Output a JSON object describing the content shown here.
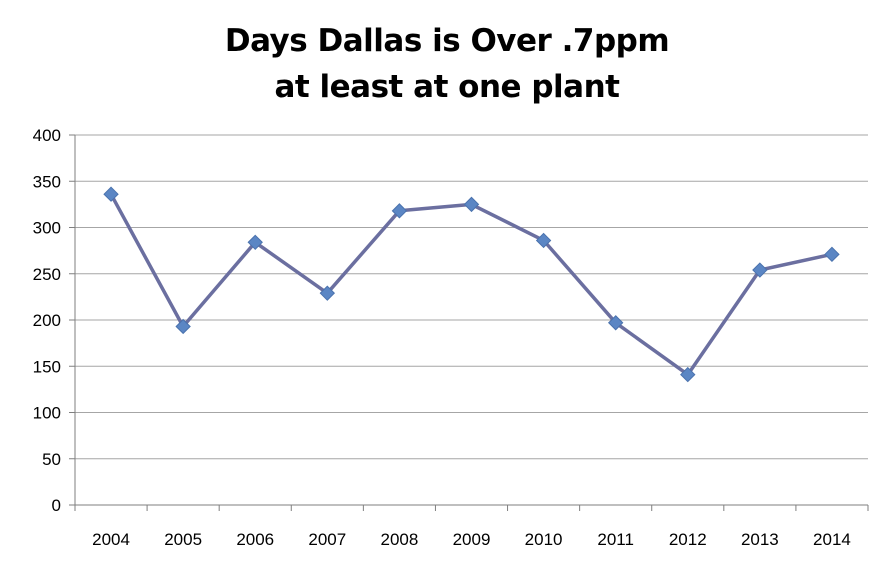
{
  "chart_data": {
    "type": "line",
    "title_lines": [
      "Days Dallas is Over .7ppm",
      "at least at one plant"
    ],
    "xlabel": "",
    "ylabel": "",
    "categories": [
      "2004",
      "2005",
      "2006",
      "2007",
      "2008",
      "2009",
      "2010",
      "2011",
      "2012",
      "2013",
      "2014"
    ],
    "series": [
      {
        "values": [
          336,
          193,
          284,
          229,
          318,
          325,
          286,
          197,
          141,
          254,
          271
        ],
        "color": "#6B6FA0",
        "marker_color": "#5B86C4",
        "marker": "diamond"
      }
    ],
    "ylim": [
      0,
      400
    ],
    "yticks": [
      0,
      50,
      100,
      150,
      200,
      250,
      300,
      350,
      400
    ],
    "grid": true,
    "legend": "none"
  }
}
